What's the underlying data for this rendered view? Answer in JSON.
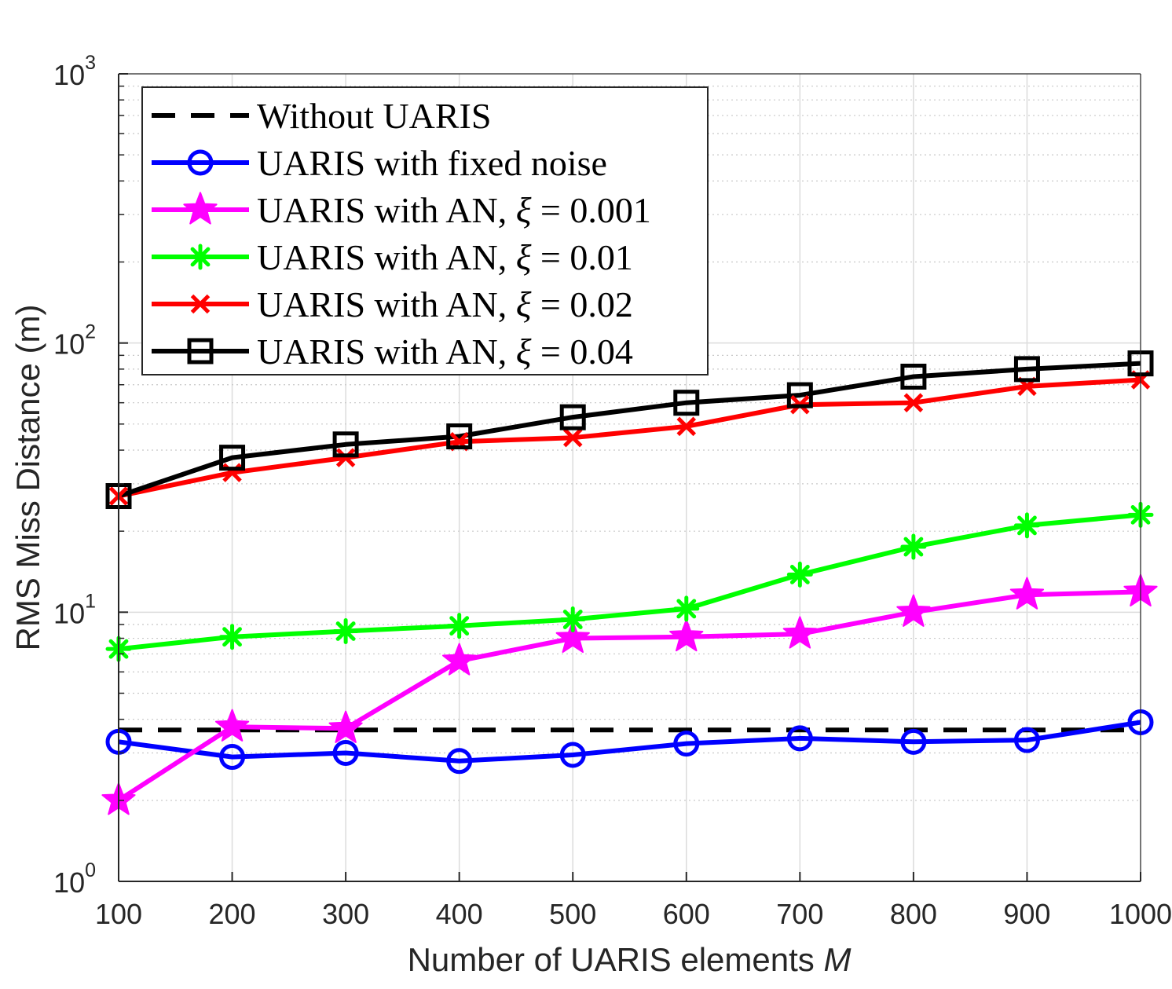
{
  "chart_data": {
    "type": "line",
    "title": "",
    "xlabel": "Number of UARIS elements",
    "xlabel_var": "M",
    "ylabel": "RMS Miss Distance (m)",
    "yscale": "log",
    "xlim": [
      100,
      1000
    ],
    "ylim": [
      1,
      1000
    ],
    "grid": true,
    "legend_position": "top-left",
    "x": [
      100,
      200,
      300,
      400,
      500,
      600,
      700,
      800,
      900,
      1000
    ],
    "x_tick_labels": [
      "100",
      "200",
      "300",
      "400",
      "500",
      "600",
      "700",
      "800",
      "900",
      "1000"
    ],
    "y_tick_labels": [
      {
        "base": "10",
        "exp": "0"
      },
      {
        "base": "10",
        "exp": "1"
      },
      {
        "base": "10",
        "exp": "2"
      },
      {
        "base": "10",
        "exp": "3"
      }
    ],
    "series": [
      {
        "name": "Without UARIS",
        "color": "#000000",
        "dashed": true,
        "marker": "none",
        "values": [
          3.65,
          3.65,
          3.65,
          3.65,
          3.65,
          3.65,
          3.65,
          3.65,
          3.65,
          3.65
        ]
      },
      {
        "name": "UARIS with fixed noise",
        "color": "#0000ff",
        "marker": "circle",
        "values": [
          3.3,
          2.9,
          3.0,
          2.8,
          2.95,
          3.25,
          3.4,
          3.3,
          3.35,
          3.9
        ]
      },
      {
        "name": "UARIS with AN, ξ = 0.001",
        "color": "#ff00ff",
        "marker": "star",
        "values": [
          2.0,
          3.75,
          3.7,
          6.6,
          8.0,
          8.1,
          8.3,
          10.0,
          11.6,
          11.9
        ]
      },
      {
        "name": "UARIS with AN, ξ = 0.01",
        "color": "#00ff00",
        "marker": "asterisk",
        "values": [
          7.3,
          8.1,
          8.5,
          8.9,
          9.4,
          10.3,
          13.8,
          17.5,
          21.0,
          23.0
        ]
      },
      {
        "name": "UARIS with AN, ξ = 0.02",
        "color": "#ff0000",
        "marker": "x",
        "values": [
          27.0,
          33.0,
          37.5,
          43.0,
          44.5,
          49.0,
          59.0,
          60.0,
          69.0,
          73.0
        ]
      },
      {
        "name": "UARIS with AN, ξ = 0.04",
        "color": "#000000",
        "marker": "square",
        "values": [
          27.0,
          37.5,
          42.0,
          45.0,
          53.0,
          60.0,
          64.0,
          75.0,
          80.0,
          84.0
        ]
      }
    ]
  }
}
